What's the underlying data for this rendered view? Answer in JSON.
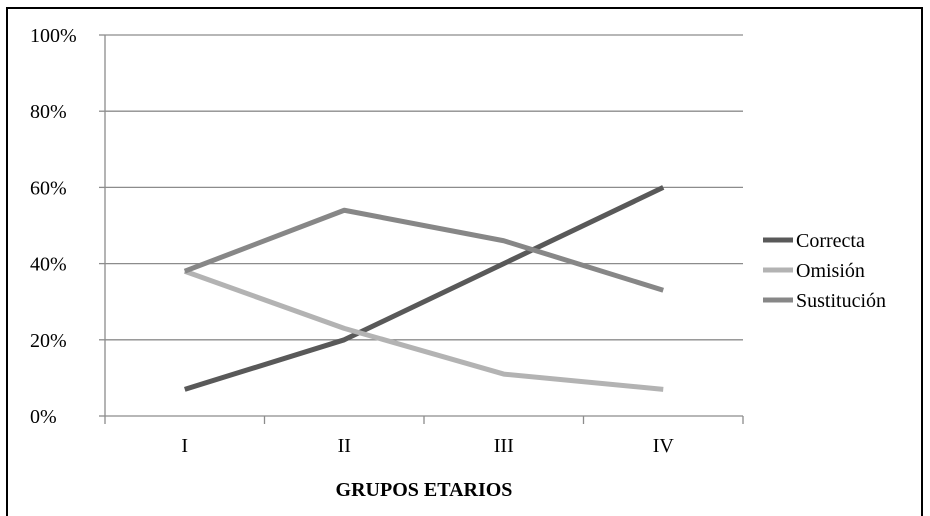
{
  "chart_data": {
    "type": "line",
    "title": "",
    "xlabel": "GRUPOS ETARIOS",
    "ylabel": "",
    "categories": [
      "I",
      "II",
      "III",
      "IV"
    ],
    "yticks": [
      "0%",
      "20%",
      "40%",
      "60%",
      "80%",
      "100%"
    ],
    "ylim": [
      0,
      100
    ],
    "grid": true,
    "legend_position": "right",
    "series": [
      {
        "name": "Correcta",
        "values": [
          7,
          20,
          40,
          60
        ],
        "color": "#595959"
      },
      {
        "name": "Omisión",
        "values": [
          38,
          23,
          11,
          7
        ],
        "color": "#b3b3b3"
      },
      {
        "name": "Sustitución",
        "values": [
          38,
          54,
          46,
          33
        ],
        "color": "#878787"
      }
    ]
  }
}
